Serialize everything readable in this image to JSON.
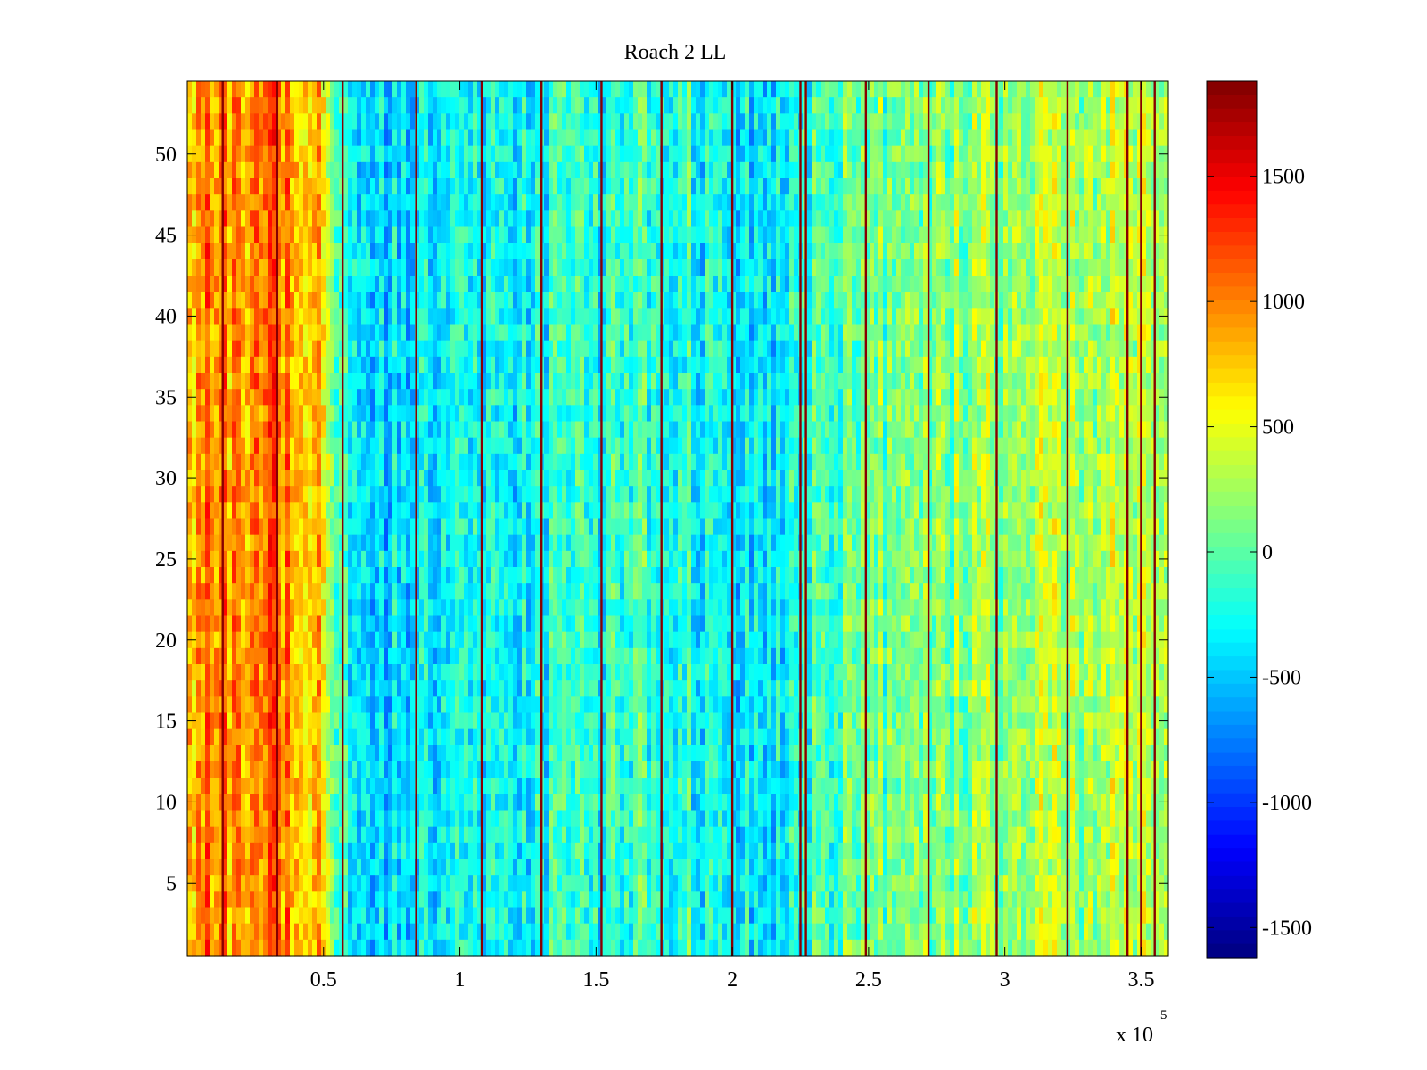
{
  "chart_data": {
    "type": "heatmap",
    "title": "Roach 2 LL",
    "xlabel": "",
    "ylabel": "",
    "x_multiplier_label": "x 10",
    "x_multiplier_exponent": "5",
    "xlim": [
      0,
      360000
    ],
    "ylim": [
      0.5,
      54.5
    ],
    "rows": 54,
    "colormap": "jet",
    "clim": [
      -1620,
      1880
    ],
    "x_ticks": [
      50000,
      100000,
      150000,
      200000,
      250000,
      300000,
      350000
    ],
    "x_tick_labels": [
      "0.5",
      "1",
      "1.5",
      "2",
      "2.5",
      "3",
      "3.5"
    ],
    "y_ticks": [
      5,
      10,
      15,
      20,
      25,
      30,
      35,
      40,
      45,
      50
    ],
    "y_tick_labels": [
      "5",
      "10",
      "15",
      "20",
      "25",
      "30",
      "35",
      "40",
      "45",
      "50"
    ],
    "colorbar_ticks": [
      -1500,
      -1000,
      -500,
      0,
      500,
      1000,
      1500
    ],
    "colorbar_tick_labels": [
      "-1500",
      "-1000",
      "-500",
      "0",
      "500",
      "1000",
      "1500"
    ],
    "column_mean_profile": {
      "x": [
        0,
        10000,
        20000,
        30000,
        40000,
        48000,
        52000,
        60000,
        80000,
        100000,
        120000,
        150000,
        170000,
        190000,
        210000,
        230000,
        260000,
        290000,
        320000,
        350000,
        360000
      ],
      "value": [
        850,
        1000,
        950,
        1050,
        900,
        800,
        100,
        -300,
        -450,
        -350,
        -300,
        -200,
        -50,
        -250,
        -400,
        -100,
        100,
        200,
        250,
        300,
        250
      ]
    },
    "dark_stripes_x": [
      13000,
      33000,
      57000,
      84000,
      108000,
      130000,
      152000,
      174000,
      200000,
      225000,
      227000,
      249000,
      272000,
      297000,
      323000,
      345000,
      350000,
      355000
    ],
    "grid": false
  }
}
